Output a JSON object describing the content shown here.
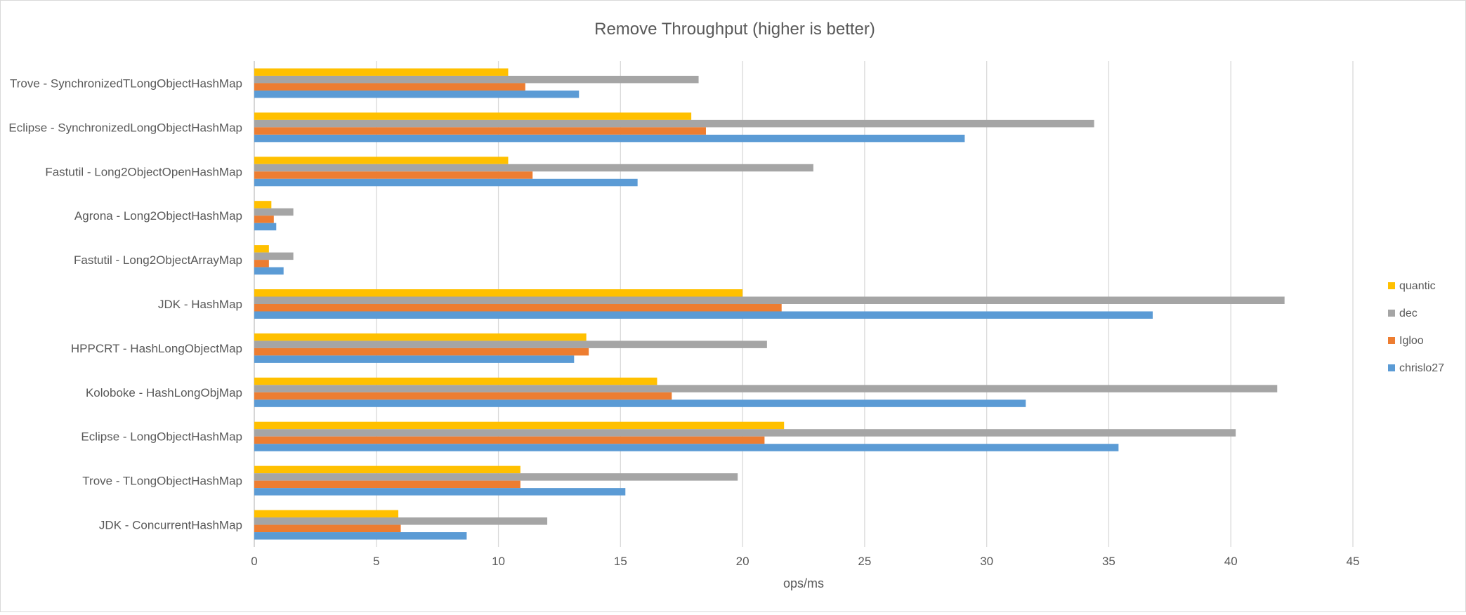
{
  "chart_data": {
    "type": "bar",
    "orientation": "horizontal",
    "title": "Remove Throughput (higher is better)",
    "xlabel": "ops/ms",
    "ylabel": "",
    "xlim": [
      0,
      45
    ],
    "x_ticks": [
      0,
      5,
      10,
      15,
      20,
      25,
      30,
      35,
      40,
      45
    ],
    "grid": true,
    "legend_position": "right",
    "categories": [
      "Trove - SynchronizedTLongObjectHashMap",
      "Eclipse - SynchronizedLongObjectHashMap",
      "Fastutil - Long2ObjectOpenHashMap",
      "Agrona - Long2ObjectHashMap",
      "Fastutil - Long2ObjectArrayMap",
      "JDK - HashMap",
      "HPPCRT - HashLongObjectMap",
      "Koloboke - HashLongObjMap",
      "Eclipse - LongObjectHashMap",
      "Trove - TLongObjectHashMap",
      "JDK - ConcurrentHashMap"
    ],
    "series": [
      {
        "name": "quantic",
        "color": "#ffc000",
        "values": [
          10.4,
          17.9,
          10.4,
          0.7,
          0.6,
          20.0,
          13.6,
          16.5,
          21.7,
          10.9,
          5.9
        ]
      },
      {
        "name": "dec",
        "color": "#a5a5a5",
        "values": [
          18.2,
          34.4,
          22.9,
          1.6,
          1.6,
          42.2,
          21.0,
          41.9,
          40.2,
          19.8,
          12.0
        ]
      },
      {
        "name": "Igloo",
        "color": "#ed7d31",
        "values": [
          11.1,
          18.5,
          11.4,
          0.8,
          0.6,
          21.6,
          13.7,
          17.1,
          20.9,
          10.9,
          6.0
        ]
      },
      {
        "name": "chrislo27",
        "color": "#5b9bd5",
        "values": [
          13.3,
          29.1,
          15.7,
          0.9,
          1.2,
          36.8,
          13.1,
          31.6,
          35.4,
          15.2,
          8.7
        ]
      }
    ],
    "legend_order": [
      "quantic",
      "dec",
      "Igloo",
      "chrislo27"
    ]
  }
}
